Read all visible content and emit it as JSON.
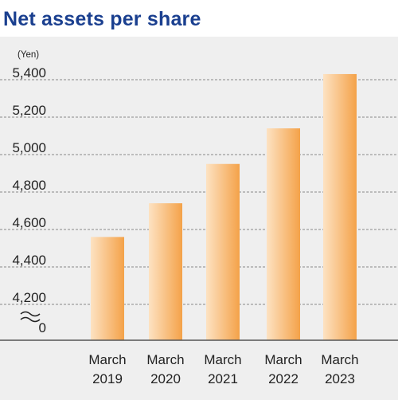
{
  "title": "Net assets per share",
  "chart_data": {
    "type": "bar",
    "title": "Net assets per share",
    "ylabel": "(Yen)",
    "xlabel": "",
    "categories": [
      [
        "March",
        "2019"
      ],
      [
        "March",
        "2020"
      ],
      [
        "March",
        "2021"
      ],
      [
        "March",
        "2022"
      ],
      [
        "March",
        "2023"
      ]
    ],
    "values": [
      4560,
      4740,
      4950,
      5140,
      5430
    ],
    "yticks": [
      "5,400",
      "5,200",
      "5,000",
      "4,800",
      "4,600",
      "4,400",
      "4,200",
      "0"
    ],
    "ylim": [
      4100,
      5430
    ],
    "axis_break": true,
    "grid": "dashed horizontal",
    "bar_colors": [
      "#fde2c2",
      "#f4a249"
    ],
    "title_color": "#1a3f8f"
  }
}
